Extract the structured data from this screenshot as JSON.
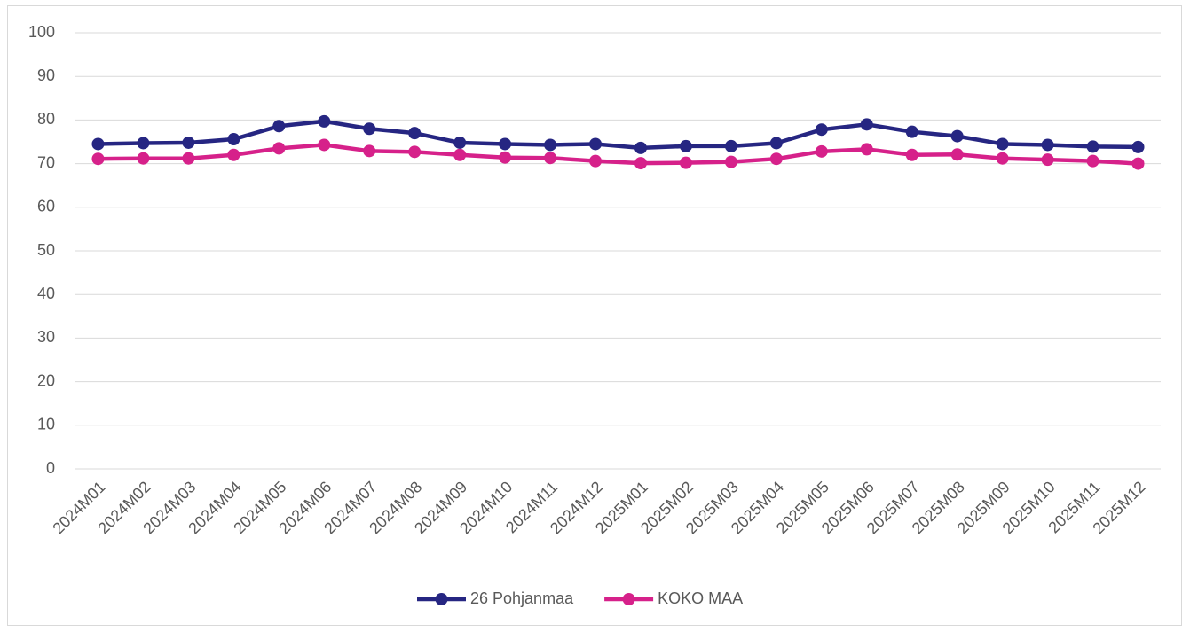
{
  "chart_data": {
    "type": "line",
    "categories": [
      "2024M01",
      "2024M02",
      "2024M03",
      "2024M04",
      "2024M05",
      "2024M06",
      "2024M07",
      "2024M08",
      "2024M09",
      "2024M10",
      "2024M11",
      "2024M12",
      "2025M01",
      "2025M02",
      "2025M03",
      "2025M04",
      "2025M05",
      "2025M06",
      "2025M07",
      "2025M08",
      "2025M09",
      "2025M10",
      "2025M11",
      "2025M12"
    ],
    "series": [
      {
        "name": "26 Pohjanmaa",
        "color": "#262682",
        "values": [
          74.5,
          74.7,
          74.8,
          75.6,
          78.6,
          79.7,
          78.0,
          77.0,
          74.8,
          74.5,
          74.3,
          74.5,
          73.6,
          74.0,
          74.0,
          74.7,
          77.8,
          79.0,
          77.3,
          76.3,
          74.5,
          74.3,
          73.9,
          73.8
        ]
      },
      {
        "name": "KOKO MAA",
        "color": "#d6218a",
        "values": [
          71.1,
          71.2,
          71.2,
          72.0,
          73.5,
          74.3,
          72.9,
          72.7,
          72.0,
          71.4,
          71.3,
          70.6,
          70.1,
          70.2,
          70.4,
          71.1,
          72.8,
          73.3,
          72.0,
          72.1,
          71.2,
          70.9,
          70.6,
          70.0
        ]
      }
    ],
    "ylim": [
      0,
      100
    ],
    "yticks": [
      0,
      10,
      20,
      30,
      40,
      50,
      60,
      70,
      80,
      90,
      100
    ],
    "grid": true,
    "legend": "bottom"
  }
}
